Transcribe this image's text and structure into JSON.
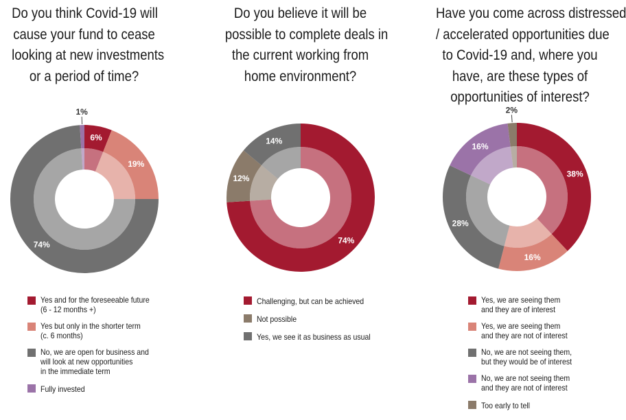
{
  "colors": {
    "crimson": "#a31a30",
    "salmon": "#d98478",
    "grey": "#707070",
    "purple": "#9b73a8",
    "taupe": "#8b7b6a",
    "label_light": "#ffffff",
    "label_dark": "#333333"
  },
  "chart_data": [
    {
      "type": "pie",
      "title": "Do you think Covid-19 will cause your fund to cease looking at new investments or a period of time?",
      "title_lines": [
        "Do you think Covid-19 will",
        "cause your fund to cease",
        "looking at new investments",
        "or a period of time?"
      ],
      "slices": [
        {
          "label": "Yes and for the foreseeable future (6 - 12 months +)",
          "label_lines": [
            "Yes and for the foreseeable future",
            "(6 - 12 months +)"
          ],
          "value": 6,
          "value_text": "6%",
          "color": "#a31a30"
        },
        {
          "label": "Yes but only in the shorter term (c. 6 months)",
          "label_lines": [
            "Yes but only in the shorter term",
            "(c. 6 months)"
          ],
          "value": 19,
          "value_text": "19%",
          "color": "#d98478"
        },
        {
          "label": "No, we are open for business and will look at new opportunities in the immediate term",
          "label_lines": [
            "No, we are open for business and",
            "will look at new opportunities",
            "in the immediate term"
          ],
          "value": 74,
          "value_text": "74%",
          "color": "#707070"
        },
        {
          "label": "Fully invested",
          "label_lines": [
            "Fully invested"
          ],
          "value": 1,
          "value_text": "1%",
          "color": "#9b73a8"
        }
      ]
    },
    {
      "type": "pie",
      "title": "Do you believe it will be possible to complete deals in the current working from home environment?",
      "title_lines": [
        "Do you believe it will be",
        "possible to complete deals in",
        "the current working from",
        "home environment?"
      ],
      "slices": [
        {
          "label": "Challenging, but can be achieved",
          "label_lines": [
            "Challenging, but can be achieved"
          ],
          "value": 74,
          "value_text": "74%",
          "color": "#a31a30"
        },
        {
          "label": "Not possible",
          "label_lines": [
            "Not possible"
          ],
          "value": 12,
          "value_text": "12%",
          "color": "#8b7b6a"
        },
        {
          "label": "Yes, we see it as business as usual",
          "label_lines": [
            "Yes, we see it as business as usual"
          ],
          "value": 14,
          "value_text": "14%",
          "color": "#707070"
        }
      ]
    },
    {
      "type": "pie",
      "title": "Have you come across distressed / accelerated opportunities due to Covid-19 and, where you have, are these types of opportunities of interest?",
      "title_lines": [
        "Have you come across distressed",
        "/ accelerated opportunities due",
        "to Covid-19 and, where you",
        "have, are these types of",
        "opportunities of interest?"
      ],
      "slices": [
        {
          "label": "Yes, we are seeing them and they are of interest",
          "label_lines": [
            "Yes, we are seeing them",
            "and they are of interest"
          ],
          "value": 38,
          "value_text": "38%",
          "color": "#a31a30"
        },
        {
          "label": "Yes, we are seeing them and they are not of interest",
          "label_lines": [
            "Yes, we are seeing them",
            "and they are not of interest"
          ],
          "value": 16,
          "value_text": "16%",
          "color": "#d98478"
        },
        {
          "label": "No, we are not seeing them, but they would be of interest",
          "label_lines": [
            "No, we are not seeing them,",
            "but they would be of interest"
          ],
          "value": 28,
          "value_text": "28%",
          "color": "#707070"
        },
        {
          "label": "No, we are not seeing them and they are not of interest",
          "label_lines": [
            "No, we are not seeing them",
            "and they are not of interest"
          ],
          "value": 16,
          "value_text": "16%",
          "color": "#9b73a8"
        },
        {
          "label": "Too early to tell",
          "label_lines": [
            "Too early to tell"
          ],
          "value": 2,
          "value_text": "2%",
          "color": "#8b7b6a"
        }
      ]
    }
  ]
}
